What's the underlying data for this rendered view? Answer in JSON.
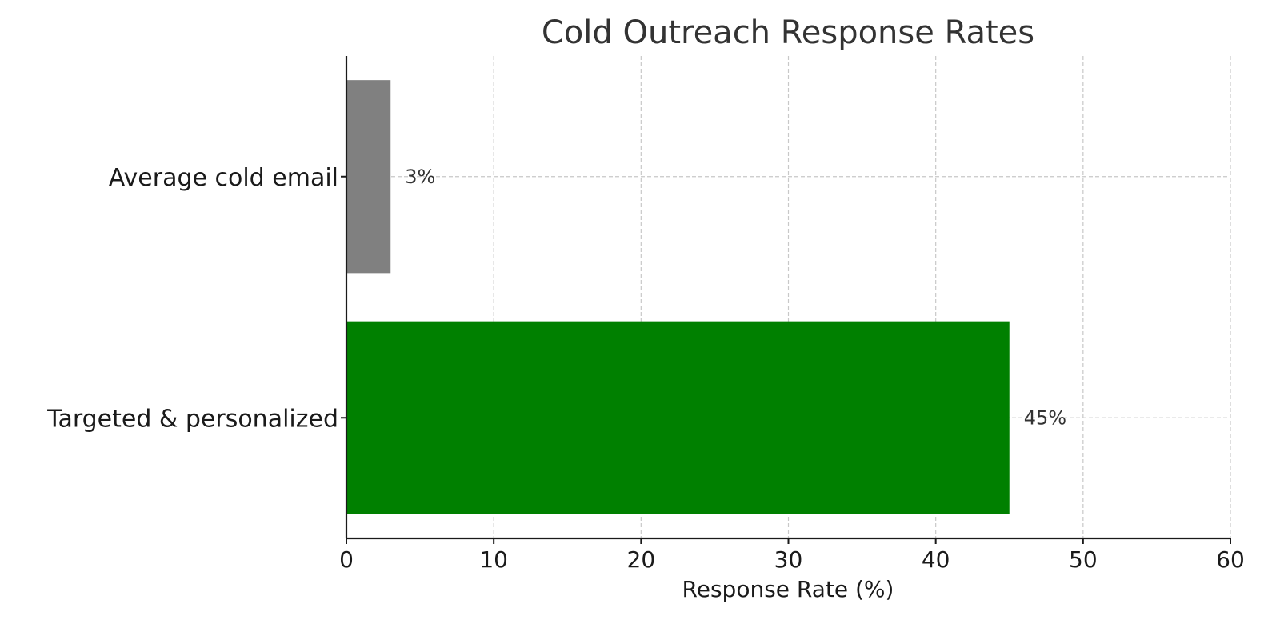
{
  "chart_data": {
    "type": "bar",
    "orientation": "horizontal",
    "title": "Cold Outreach Response Rates",
    "xlabel": "Response Rate (%)",
    "ylabel": "",
    "xlim": [
      0,
      60
    ],
    "xticks": [
      0,
      10,
      20,
      30,
      40,
      50,
      60
    ],
    "grid": true,
    "categories": [
      "Average cold email",
      "Targeted & personalized"
    ],
    "values": [
      3,
      45
    ],
    "data_labels": [
      "3%",
      "45%"
    ],
    "colors": [
      "#808080",
      "#008000"
    ]
  }
}
